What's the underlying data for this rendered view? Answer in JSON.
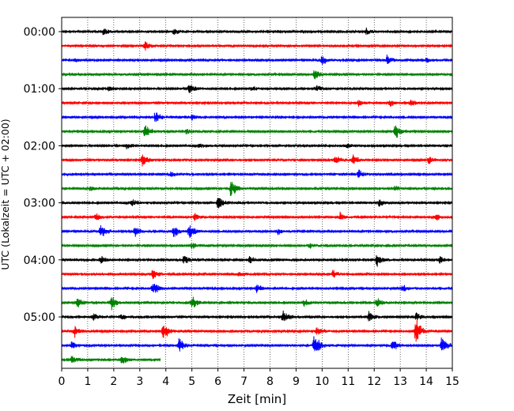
{
  "chart_data": {
    "type": "line",
    "chart_kind": "helicorder (seismogram drum plot)",
    "xlabel": "Zeit  [min]",
    "ylabel": "UTC (Lokalzeit = UTC + 02:00)",
    "xlim": [
      0,
      15
    ],
    "x_ticks": [
      "0",
      "1",
      "2",
      "3",
      "4",
      "5",
      "6",
      "7",
      "8",
      "9",
      "10",
      "11",
      "12",
      "13",
      "14",
      "15"
    ],
    "y_ticks": [
      "00:00",
      "01:00",
      "02:00",
      "03:00",
      "04:00",
      "05:00"
    ],
    "grid": "vertical dotted lines at each minute",
    "trace_interval_minutes": 15,
    "trace_colors": [
      "#000000",
      "#ff0000",
      "#0000ff",
      "#008000"
    ],
    "last_trace_end_min": 3.8,
    "traces": [
      {
        "start": "00:00",
        "color": "#000000",
        "events": [
          {
            "t": 1.6,
            "a": 0.5
          },
          {
            "t": 4.3,
            "a": 0.4
          },
          {
            "t": 11.7,
            "a": 0.4
          }
        ]
      },
      {
        "start": "00:15",
        "color": "#ff0000",
        "events": [
          {
            "t": 3.2,
            "a": 0.6
          }
        ]
      },
      {
        "start": "00:30",
        "color": "#0000ff",
        "events": [
          {
            "t": 0.5,
            "a": 0.3
          },
          {
            "t": 10.0,
            "a": 0.6
          },
          {
            "t": 12.5,
            "a": 0.6
          },
          {
            "t": 14.0,
            "a": 0.3
          }
        ]
      },
      {
        "start": "00:45",
        "color": "#008000",
        "events": [
          {
            "t": 9.7,
            "a": 0.7
          }
        ]
      },
      {
        "start": "01:00",
        "color": "#000000",
        "events": [
          {
            "t": 1.8,
            "a": 0.4
          },
          {
            "t": 4.9,
            "a": 0.8
          },
          {
            "t": 7.3,
            "a": 0.3
          },
          {
            "t": 9.8,
            "a": 0.4
          }
        ]
      },
      {
        "start": "01:15",
        "color": "#ff0000",
        "events": [
          {
            "t": 11.4,
            "a": 0.4
          },
          {
            "t": 12.6,
            "a": 0.5
          },
          {
            "t": 13.4,
            "a": 0.5
          }
        ]
      },
      {
        "start": "01:30",
        "color": "#0000ff",
        "events": [
          {
            "t": 3.6,
            "a": 0.8
          },
          {
            "t": 5.0,
            "a": 0.5
          }
        ]
      },
      {
        "start": "01:45",
        "color": "#008000",
        "events": [
          {
            "t": 3.2,
            "a": 1.0
          },
          {
            "t": 4.8,
            "a": 0.4
          },
          {
            "t": 12.8,
            "a": 1.0
          }
        ]
      },
      {
        "start": "02:00",
        "color": "#000000",
        "events": [
          {
            "t": 2.5,
            "a": 0.4
          },
          {
            "t": 5.3,
            "a": 0.3
          },
          {
            "t": 10.9,
            "a": 0.4
          }
        ]
      },
      {
        "start": "02:15",
        "color": "#ff0000",
        "events": [
          {
            "t": 3.1,
            "a": 1.0
          },
          {
            "t": 10.5,
            "a": 0.6
          },
          {
            "t": 11.2,
            "a": 0.8
          },
          {
            "t": 14.1,
            "a": 0.5
          }
        ]
      },
      {
        "start": "02:30",
        "color": "#0000ff",
        "events": [
          {
            "t": 4.2,
            "a": 0.3
          },
          {
            "t": 11.4,
            "a": 0.6
          }
        ]
      },
      {
        "start": "02:45",
        "color": "#008000",
        "events": [
          {
            "t": 1.1,
            "a": 0.3
          },
          {
            "t": 6.5,
            "a": 1.2
          },
          {
            "t": 12.8,
            "a": 0.4
          }
        ]
      },
      {
        "start": "03:00",
        "color": "#000000",
        "events": [
          {
            "t": 2.7,
            "a": 0.5
          },
          {
            "t": 6.0,
            "a": 1.0
          },
          {
            "t": 12.2,
            "a": 0.5
          }
        ]
      },
      {
        "start": "03:15",
        "color": "#ff0000",
        "events": [
          {
            "t": 1.3,
            "a": 0.5
          },
          {
            "t": 5.1,
            "a": 0.5
          },
          {
            "t": 10.7,
            "a": 0.6
          },
          {
            "t": 14.4,
            "a": 0.4
          }
        ]
      },
      {
        "start": "03:30",
        "color": "#0000ff",
        "events": [
          {
            "t": 1.5,
            "a": 1.0
          },
          {
            "t": 2.8,
            "a": 0.6
          },
          {
            "t": 4.3,
            "a": 0.8
          },
          {
            "t": 4.9,
            "a": 1.0
          },
          {
            "t": 8.3,
            "a": 0.4
          }
        ]
      },
      {
        "start": "03:45",
        "color": "#008000",
        "events": [
          {
            "t": 5.0,
            "a": 0.5
          },
          {
            "t": 9.5,
            "a": 0.4
          }
        ]
      },
      {
        "start": "04:00",
        "color": "#000000",
        "events": [
          {
            "t": 1.5,
            "a": 0.5
          },
          {
            "t": 4.7,
            "a": 0.6
          },
          {
            "t": 7.2,
            "a": 0.5
          },
          {
            "t": 12.1,
            "a": 0.8
          },
          {
            "t": 14.5,
            "a": 0.5
          }
        ]
      },
      {
        "start": "04:15",
        "color": "#ff0000",
        "events": [
          {
            "t": 3.5,
            "a": 0.7
          },
          {
            "t": 6.8,
            "a": 0.4
          },
          {
            "t": 10.4,
            "a": 0.6
          }
        ]
      },
      {
        "start": "04:30",
        "color": "#0000ff",
        "events": [
          {
            "t": 3.5,
            "a": 0.9
          },
          {
            "t": 7.5,
            "a": 0.6
          },
          {
            "t": 13.1,
            "a": 0.5
          }
        ]
      },
      {
        "start": "04:45",
        "color": "#008000",
        "events": [
          {
            "t": 0.6,
            "a": 0.7
          },
          {
            "t": 1.9,
            "a": 0.9
          },
          {
            "t": 5.0,
            "a": 0.9
          },
          {
            "t": 9.3,
            "a": 0.5
          },
          {
            "t": 12.1,
            "a": 0.6
          }
        ]
      },
      {
        "start": "05:00",
        "color": "#000000",
        "events": [
          {
            "t": 1.2,
            "a": 0.5
          },
          {
            "t": 2.3,
            "a": 0.5
          },
          {
            "t": 8.5,
            "a": 1.0
          },
          {
            "t": 11.8,
            "a": 0.7
          },
          {
            "t": 13.6,
            "a": 0.6
          }
        ]
      },
      {
        "start": "05:15",
        "color": "#ff0000",
        "events": [
          {
            "t": 0.5,
            "a": 0.8
          },
          {
            "t": 3.9,
            "a": 1.2
          },
          {
            "t": 9.8,
            "a": 0.6
          },
          {
            "t": 13.6,
            "a": 1.8
          }
        ]
      },
      {
        "start": "05:30",
        "color": "#0000ff",
        "events": [
          {
            "t": 0.4,
            "a": 0.6
          },
          {
            "t": 4.5,
            "a": 1.0
          },
          {
            "t": 9.7,
            "a": 1.6
          },
          {
            "t": 12.7,
            "a": 0.8
          },
          {
            "t": 14.6,
            "a": 1.2
          }
        ]
      },
      {
        "start": "05:45",
        "color": "#008000",
        "events": [
          {
            "t": 0.4,
            "a": 0.6
          },
          {
            "t": 2.3,
            "a": 0.8
          }
        ]
      }
    ]
  }
}
